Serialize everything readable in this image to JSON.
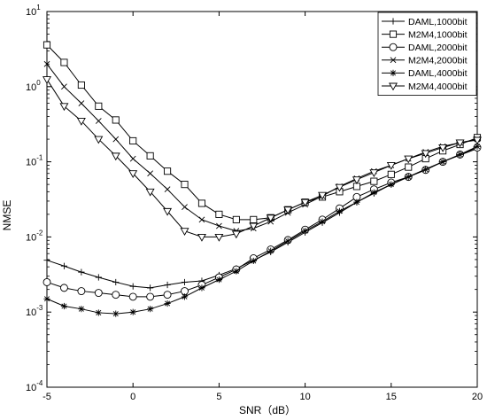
{
  "chart_data": {
    "type": "line",
    "xlabel": "SNR（dB）",
    "ylabel": "NMSE",
    "yscale": "log",
    "xlim": [
      -5,
      20
    ],
    "ylim": [
      0.0001,
      10
    ],
    "xticks": [
      -5,
      0,
      5,
      10,
      15,
      20
    ],
    "xtick_labels": [
      "-5",
      "0",
      "5",
      "10",
      "15",
      "20"
    ],
    "yticks": [
      0.0001,
      0.001,
      0.01,
      0.1,
      1,
      10
    ],
    "ytick_labels": [
      {
        "base": "10",
        "exp": "-4"
      },
      {
        "base": "10",
        "exp": "-3"
      },
      {
        "base": "10",
        "exp": "-2"
      },
      {
        "base": "10",
        "exp": "-1"
      },
      {
        "base": "10",
        "exp": "0"
      },
      {
        "base": "10",
        "exp": "1"
      }
    ],
    "grid": false,
    "legend_position": "top-right",
    "x": [
      -5,
      -4,
      -3,
      -2,
      -1,
      0,
      1,
      2,
      3,
      4,
      5,
      6,
      7,
      8,
      9,
      10,
      11,
      12,
      13,
      14,
      15,
      16,
      17,
      18,
      19,
      20
    ],
    "series": [
      {
        "name": "DAML,1000bit",
        "marker": "plus",
        "values": [
          0.0049,
          0.0041,
          0.0034,
          0.0029,
          0.0025,
          0.0022,
          0.0021,
          0.0023,
          0.0025,
          0.0026,
          0.0031,
          0.0038,
          0.0049,
          0.0063,
          0.0085,
          0.0115,
          0.0155,
          0.021,
          0.029,
          0.038,
          0.05,
          0.063,
          0.08,
          0.1,
          0.123,
          0.15
        ]
      },
      {
        "name": "M2M4,1000bit",
        "marker": "square",
        "values": [
          3.6,
          2.1,
          1.05,
          0.55,
          0.36,
          0.19,
          0.12,
          0.075,
          0.05,
          0.028,
          0.02,
          0.017,
          0.017,
          0.018,
          0.023,
          0.029,
          0.034,
          0.04,
          0.047,
          0.055,
          0.068,
          0.085,
          0.11,
          0.14,
          0.17,
          0.21
        ]
      },
      {
        "name": "DAML,2000bit",
        "marker": "circle",
        "values": [
          0.0025,
          0.0021,
          0.0019,
          0.0018,
          0.0017,
          0.0016,
          0.0016,
          0.0017,
          0.0019,
          0.0023,
          0.0029,
          0.0037,
          0.0052,
          0.0068,
          0.0091,
          0.0125,
          0.017,
          0.024,
          0.034,
          0.043,
          0.053,
          0.063,
          0.078,
          0.1,
          0.125,
          0.155
        ]
      },
      {
        "name": "M2M4,2000bit",
        "marker": "x",
        "values": [
          2.0,
          1.0,
          0.6,
          0.35,
          0.2,
          0.11,
          0.07,
          0.043,
          0.025,
          0.017,
          0.014,
          0.012,
          0.013,
          0.016,
          0.021,
          0.027,
          0.035,
          0.047,
          0.06,
          0.075,
          0.09,
          0.11,
          0.135,
          0.16,
          0.18,
          0.2
        ]
      },
      {
        "name": "DAML,4000bit",
        "marker": "asterisk",
        "values": [
          0.0015,
          0.0012,
          0.0011,
          0.00098,
          0.00095,
          0.001,
          0.0011,
          0.0013,
          0.0016,
          0.0021,
          0.0027,
          0.0035,
          0.0048,
          0.0065,
          0.0088,
          0.012,
          0.016,
          0.022,
          0.029,
          0.039,
          0.05,
          0.063,
          0.079,
          0.1,
          0.125,
          0.16
        ]
      },
      {
        "name": "M2M4,4000bit",
        "marker": "triangle-down",
        "values": [
          1.25,
          0.55,
          0.35,
          0.2,
          0.12,
          0.07,
          0.04,
          0.022,
          0.012,
          0.01,
          0.01,
          0.011,
          0.014,
          0.018,
          0.023,
          0.029,
          0.036,
          0.046,
          0.058,
          0.072,
          0.09,
          0.11,
          0.13,
          0.155,
          0.18,
          0.195
        ]
      }
    ]
  }
}
